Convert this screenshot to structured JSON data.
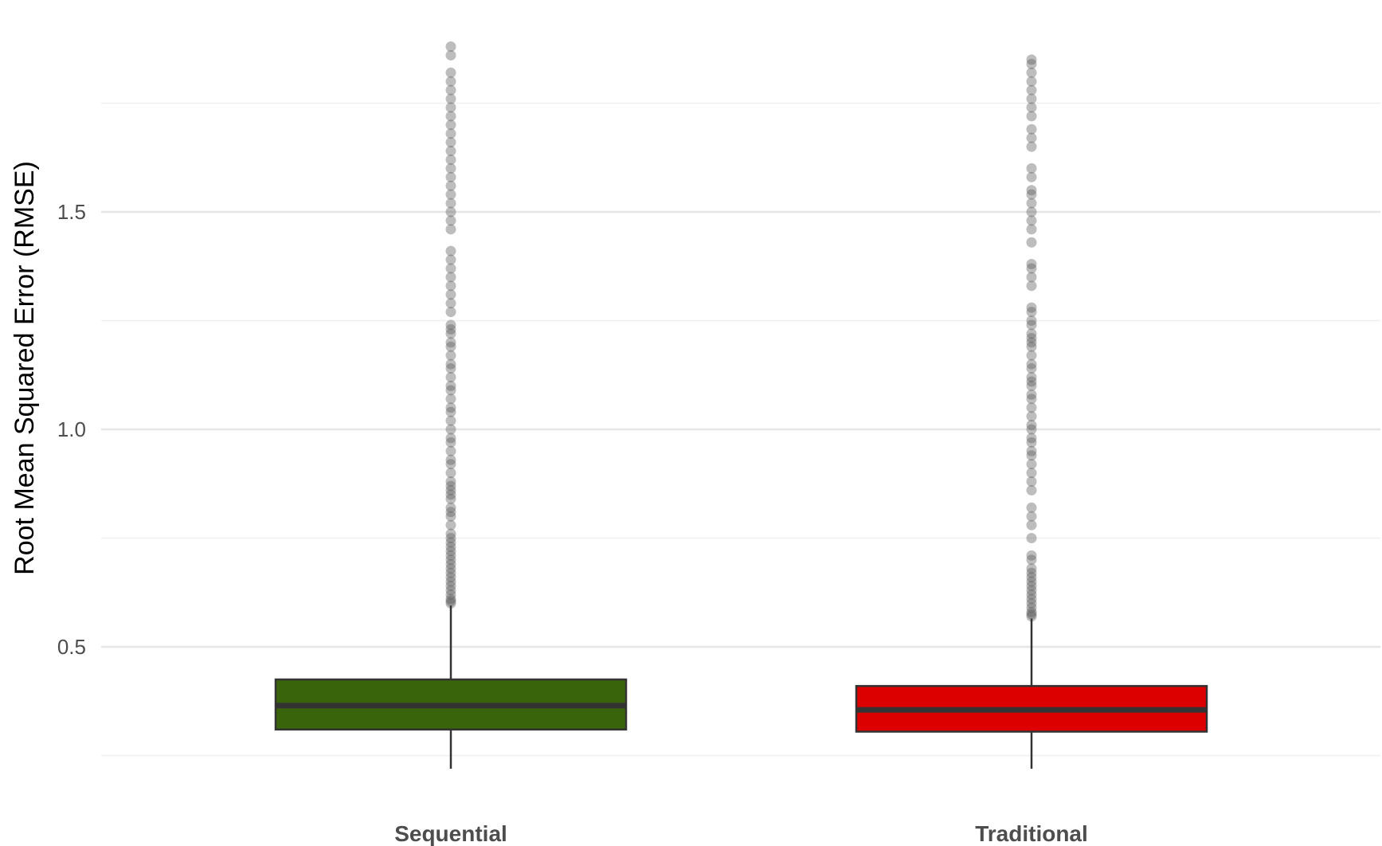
{
  "chart_data": {
    "type": "boxplot",
    "title": "",
    "xlabel": "",
    "ylabel": "Root Mean Squared Error (RMSE)",
    "ylim": [
      0.22,
      1.92
    ],
    "yticks": [
      0.5,
      1.0,
      1.5
    ],
    "ytick_labels": [
      "0.5",
      "1.0",
      "1.5"
    ],
    "minor_gridlines": [
      0.25,
      0.75,
      1.25,
      1.75
    ],
    "grid": true,
    "legend": "none",
    "categories": [
      "Sequential",
      "Traditional"
    ],
    "boxes": [
      {
        "category": "Sequential",
        "color": "#3a640b",
        "q1": 0.31,
        "median": 0.365,
        "q3": 0.425,
        "whisker_low": 0.22,
        "whisker_high": 0.595,
        "outliers": [
          0.6,
          0.605,
          0.61,
          0.62,
          0.63,
          0.64,
          0.65,
          0.66,
          0.67,
          0.68,
          0.69,
          0.7,
          0.71,
          0.72,
          0.73,
          0.74,
          0.75,
          0.76,
          0.78,
          0.8,
          0.81,
          0.82,
          0.84,
          0.85,
          0.86,
          0.87,
          0.88,
          0.9,
          0.92,
          0.93,
          0.95,
          0.97,
          0.98,
          1.0,
          1.02,
          1.04,
          1.05,
          1.07,
          1.09,
          1.1,
          1.12,
          1.14,
          1.15,
          1.17,
          1.19,
          1.2,
          1.22,
          1.23,
          1.24,
          1.27,
          1.29,
          1.31,
          1.33,
          1.35,
          1.37,
          1.39,
          1.41,
          1.46,
          1.48,
          1.5,
          1.52,
          1.54,
          1.56,
          1.58,
          1.6,
          1.62,
          1.64,
          1.66,
          1.68,
          1.7,
          1.72,
          1.74,
          1.76,
          1.78,
          1.8,
          1.82,
          1.86,
          1.88
        ]
      },
      {
        "category": "Traditional",
        "color": "#dd0000",
        "q1": 0.305,
        "median": 0.355,
        "q3": 0.41,
        "whisker_low": 0.22,
        "whisker_high": 0.565,
        "outliers": [
          0.57,
          0.575,
          0.58,
          0.59,
          0.6,
          0.61,
          0.62,
          0.63,
          0.64,
          0.65,
          0.66,
          0.67,
          0.68,
          0.7,
          0.71,
          0.75,
          0.78,
          0.8,
          0.82,
          0.86,
          0.88,
          0.9,
          0.92,
          0.94,
          0.95,
          0.97,
          0.98,
          1.0,
          1.01,
          1.03,
          1.05,
          1.07,
          1.08,
          1.1,
          1.11,
          1.12,
          1.14,
          1.15,
          1.17,
          1.19,
          1.2,
          1.21,
          1.22,
          1.24,
          1.25,
          1.27,
          1.28,
          1.33,
          1.35,
          1.37,
          1.38,
          1.43,
          1.46,
          1.48,
          1.5,
          1.52,
          1.54,
          1.55,
          1.58,
          1.6,
          1.65,
          1.67,
          1.69,
          1.72,
          1.74,
          1.76,
          1.78,
          1.8,
          1.82,
          1.84,
          1.85
        ]
      }
    ]
  }
}
